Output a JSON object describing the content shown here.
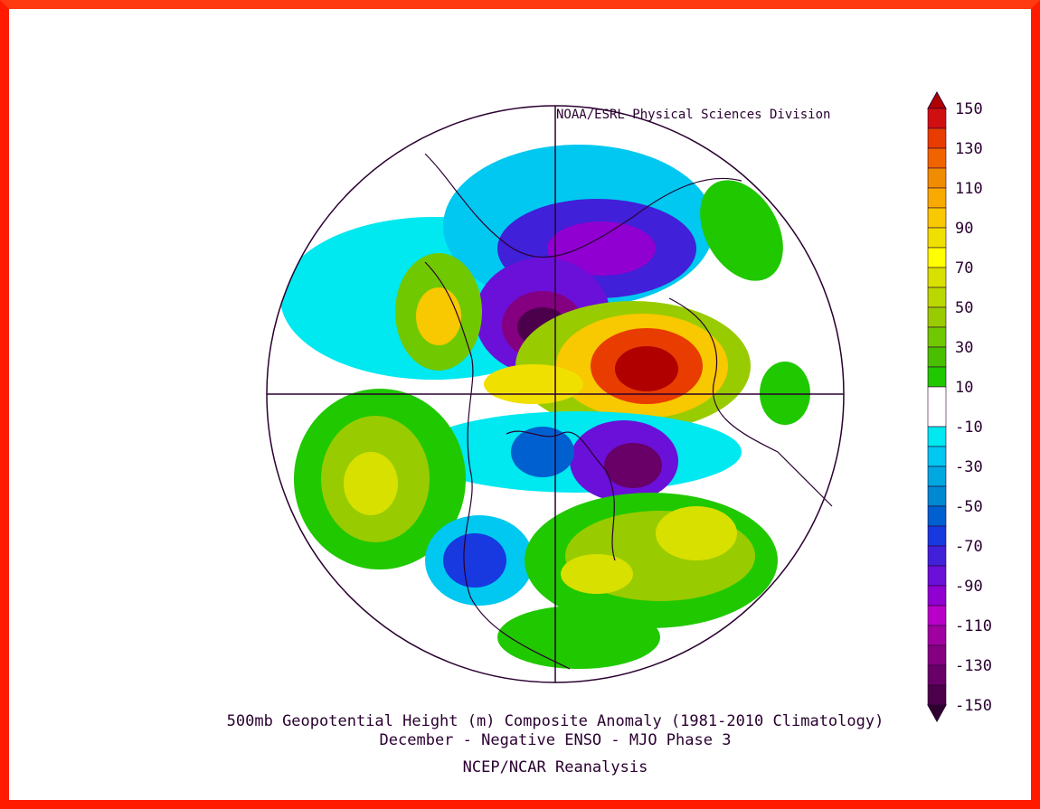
{
  "header": {
    "credit": "NOAA/ESRL Physical Sciences Division"
  },
  "colorbar": {
    "labels": [
      "150",
      "130",
      "110",
      "90",
      "70",
      "50",
      "30",
      "10",
      "-10",
      "-30",
      "-50",
      "-70",
      "-90",
      "-110",
      "-130",
      "-150"
    ],
    "top_arrow_color": "#b00000",
    "bottom_arrow_color": "#2e0030",
    "colors": [
      "#d01010",
      "#e83c00",
      "#f06400",
      "#f08c00",
      "#f8aa00",
      "#f8c800",
      "#f0e000",
      "#ffff00",
      "#d8e000",
      "#b8d800",
      "#98cc00",
      "#70c800",
      "#48c000",
      "#20c800",
      "#ffffff",
      "#00e8f0",
      "#00c8f0",
      "#00a8e0",
      "#0088d0",
      "#0060d0",
      "#1838e0",
      "#4020d8",
      "#6a10d8",
      "#9000d0",
      "#b800c8",
      "#a000a0",
      "#840080",
      "#680068",
      "#4c004c"
    ]
  },
  "footer": {
    "title": "500mb Geopotential Height (m) Composite Anomaly (1981-2010 Climatology)",
    "subtitle": "December - Negative ENSO - MJO Phase 3",
    "source": "NCEP/NCAR Reanalysis"
  }
}
